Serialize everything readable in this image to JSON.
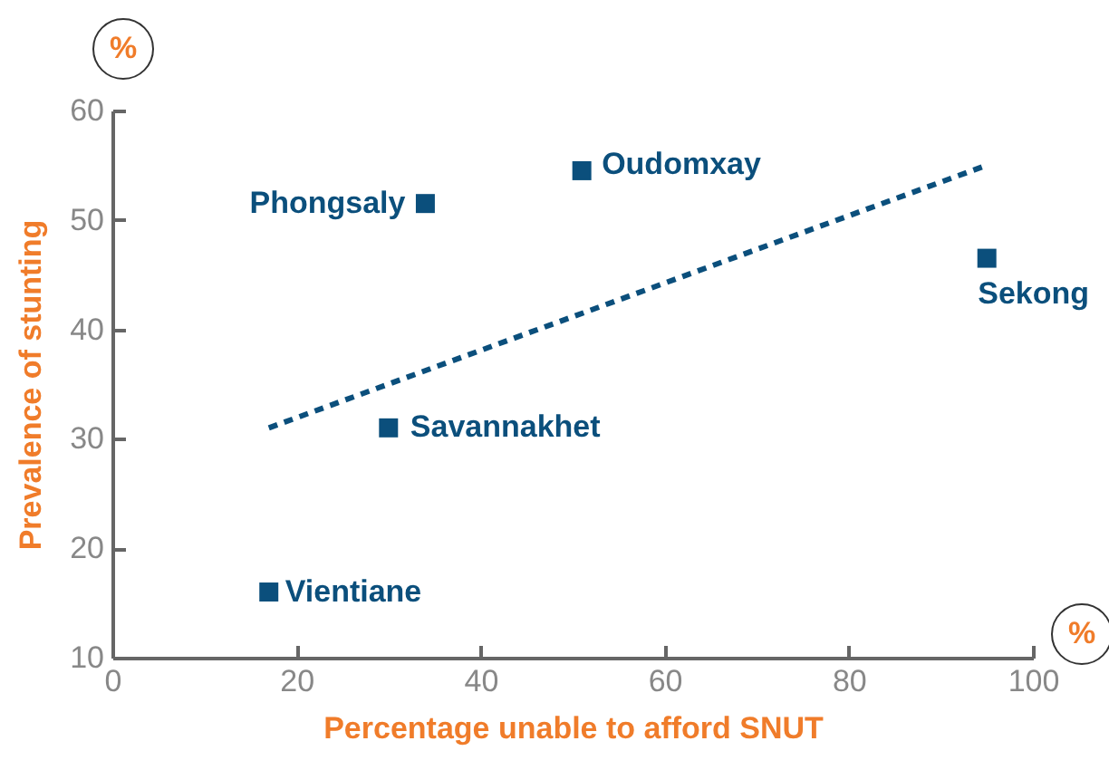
{
  "chart_data": {
    "type": "scatter",
    "xlabel": "Percentage unable to afford SNUT",
    "ylabel": "Prevalence of stunting",
    "xlim": [
      0,
      100
    ],
    "xticks": [
      0,
      20,
      40,
      60,
      80,
      100
    ],
    "ylim": [
      10,
      60
    ],
    "yticks": [
      10,
      20,
      30,
      40,
      50,
      60
    ],
    "grid": false,
    "marker": "square",
    "series": [
      {
        "color": "#0b4f7c",
        "x": [
          17,
          30,
          34,
          51,
          95
        ],
        "values": [
          16,
          31,
          51.5,
          54.5,
          46.5
        ]
      },
      {
        "type": "line",
        "color": "#0b4f7c",
        "line_style": "dashed",
        "marker": "none",
        "x": [
          17,
          95
        ],
        "values": [
          31,
          55
        ]
      }
    ],
    "annotations": [
      {
        "text": "Vientiane",
        "x": 17,
        "y": 16
      },
      {
        "text": "Savannakhet",
        "x": 30,
        "y": 31
      },
      {
        "text": "Phongsaly",
        "x": 34,
        "y": 51.5
      },
      {
        "text": "Oudomxay",
        "x": 51,
        "y": 54.5
      },
      {
        "text": "Sekong",
        "x": 95,
        "y": 46.5
      },
      "%",
      "%"
    ]
  }
}
